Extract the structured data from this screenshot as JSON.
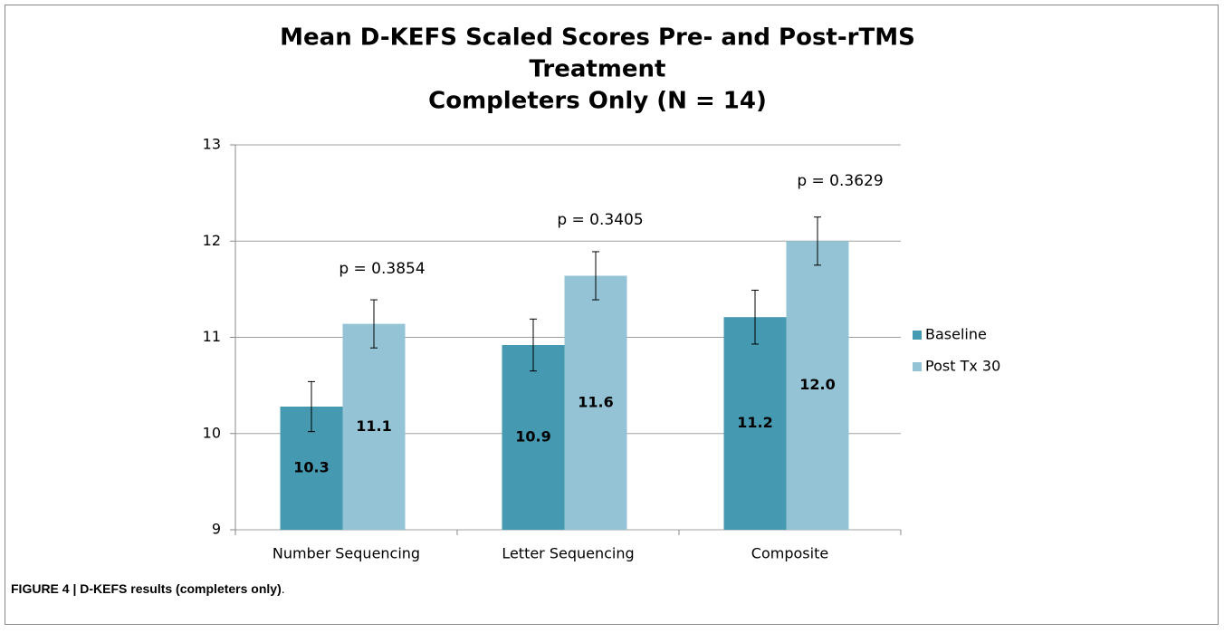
{
  "chart_data": {
    "type": "bar",
    "title": [
      "Mean D-KEFS Scaled Scores Pre- and Post-rTMS",
      "Treatment",
      "Completers Only (N = 14)"
    ],
    "categories": [
      "Number Sequencing",
      "Letter Sequencing",
      "Composite"
    ],
    "series": [
      {
        "name": "Baseline",
        "color": "#4599b0",
        "values": [
          10.28,
          10.92,
          11.21
        ],
        "value_labels": [
          "10.3",
          "10.9",
          "11.2"
        ],
        "errors": [
          0.26,
          0.27,
          0.28
        ]
      },
      {
        "name": "Post Tx 30",
        "color": "#93c3d5",
        "values": [
          11.14,
          11.64,
          12.0
        ],
        "value_labels": [
          "11.1",
          "11.6",
          "12.0"
        ],
        "errors": [
          0.25,
          0.25,
          0.25
        ]
      }
    ],
    "annotations": [
      "p = 0.3854",
      "p = 0.3405",
      "p = 0.3629"
    ],
    "ylim": [
      9,
      13
    ],
    "yticks": [
      9,
      10,
      11,
      12,
      13
    ],
    "grid": true,
    "legend": "right"
  },
  "caption": {
    "text": "FIGURE 4 | D-KEFS results (completers only)",
    "end": "."
  }
}
